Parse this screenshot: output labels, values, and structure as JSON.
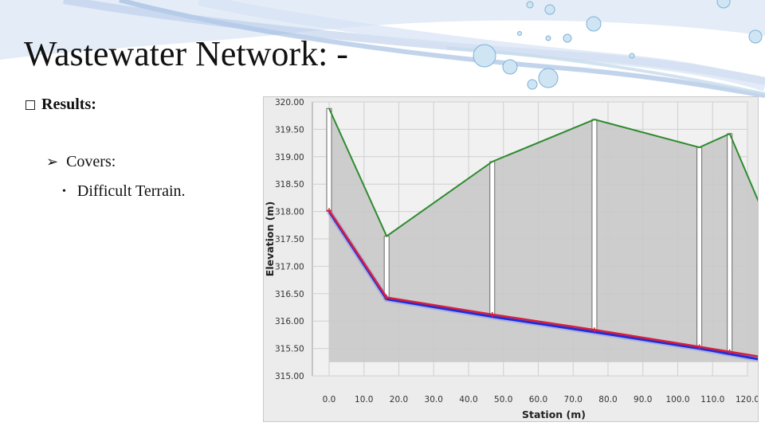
{
  "slide": {
    "title": "Wastewater Network: -",
    "bullet_l1": "Results:",
    "bullet_l2": "Covers:",
    "bullet_l3": "Difficult Terrain."
  },
  "icons": {
    "l1": "checkbox-icon",
    "l2": "arrow-right-icon",
    "l3": "bullet-dot-icon"
  },
  "colors": {
    "ground": "#2e8b2e",
    "crown": "#d81e3a",
    "invert": "#1d2ed8",
    "fill": "#c9c9c9"
  },
  "chart_data": {
    "type": "line",
    "xlabel": "Station (m)",
    "ylabel": "Elevation (m)",
    "xlim": [
      0,
      130
    ],
    "ylim": [
      315,
      320
    ],
    "x_ticks": [
      "0.0",
      "10.0",
      "20.0",
      "30.0",
      "40.0",
      "50.0",
      "60.0",
      "70.0",
      "80.0",
      "90.0",
      "100.0",
      "110.0",
      "120.0"
    ],
    "y_ticks": [
      "315.00",
      "315.50",
      "316.00",
      "316.50",
      "317.00",
      "317.50",
      "318.00",
      "318.50",
      "319.00",
      "319.50",
      "320.00"
    ],
    "grid": true,
    "legend": "none",
    "stations": [
      0,
      16.5,
      46.8,
      76.1,
      106.2,
      114.9,
      125.4
    ],
    "series": [
      {
        "values": [
          319.88,
          317.55,
          318.91,
          319.68,
          319.17,
          319.42,
          317.85
        ]
      },
      {
        "values": [
          318.02,
          316.43,
          316.12,
          315.84,
          315.53,
          315.44,
          315.33
        ]
      },
      {
        "values": [
          318.0,
          316.4,
          316.08,
          315.8,
          315.5,
          315.4,
          315.28
        ]
      }
    ]
  }
}
